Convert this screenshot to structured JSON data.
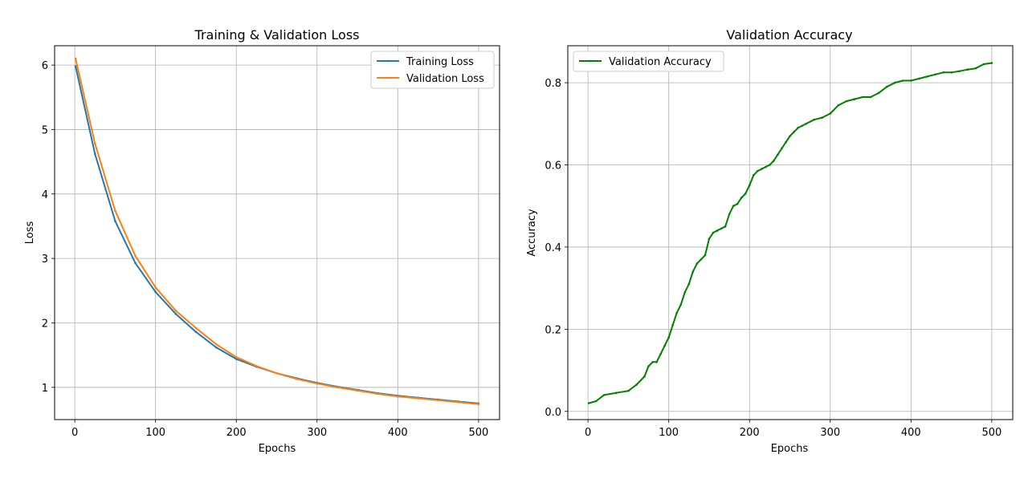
{
  "chart_data": [
    {
      "type": "line",
      "title": "Training & Validation Loss",
      "xlabel": "Epochs",
      "ylabel": "Loss",
      "xlim": [
        -25,
        526
      ],
      "ylim": [
        0.5,
        6.3
      ],
      "xticks": [
        0,
        100,
        200,
        300,
        400,
        500
      ],
      "yticks": [
        1,
        2,
        3,
        4,
        5,
        6
      ],
      "grid": true,
      "legend_position": "top-right",
      "series": [
        {
          "name": "Training Loss",
          "color": "#1f77b4",
          "x": [
            1,
            25,
            50,
            75,
            100,
            125,
            150,
            175,
            200,
            225,
            250,
            275,
            300,
            325,
            350,
            375,
            400,
            425,
            450,
            475,
            500
          ],
          "y": [
            5.98,
            4.62,
            3.58,
            2.93,
            2.48,
            2.14,
            1.86,
            1.62,
            1.44,
            1.32,
            1.22,
            1.14,
            1.07,
            1.01,
            0.96,
            0.91,
            0.87,
            0.84,
            0.81,
            0.78,
            0.75
          ]
        },
        {
          "name": "Validation Loss",
          "color": "#ff7f0e",
          "x": [
            1,
            25,
            50,
            75,
            100,
            125,
            150,
            175,
            200,
            225,
            250,
            275,
            300,
            325,
            350,
            375,
            400,
            425,
            450,
            475,
            500
          ],
          "y": [
            6.1,
            4.78,
            3.74,
            3.04,
            2.55,
            2.19,
            1.92,
            1.67,
            1.47,
            1.33,
            1.22,
            1.13,
            1.06,
            1.0,
            0.95,
            0.9,
            0.86,
            0.83,
            0.8,
            0.77,
            0.74
          ]
        }
      ]
    },
    {
      "type": "line",
      "title": "Validation Accuracy",
      "xlabel": "Epochs",
      "ylabel": "Accuracy",
      "xlim": [
        -25,
        526
      ],
      "ylim": [
        -0.02,
        0.89
      ],
      "xticks": [
        0,
        100,
        200,
        300,
        400,
        500
      ],
      "yticks": [
        0.0,
        0.2,
        0.4,
        0.6,
        0.8
      ],
      "grid": true,
      "legend_position": "top-left",
      "series": [
        {
          "name": "Validation Accuracy",
          "color": "#008000",
          "x": [
            1,
            10,
            20,
            35,
            50,
            60,
            70,
            75,
            80,
            85,
            90,
            95,
            100,
            105,
            110,
            115,
            120,
            125,
            130,
            135,
            140,
            145,
            150,
            155,
            160,
            165,
            170,
            175,
            180,
            185,
            190,
            195,
            200,
            205,
            210,
            215,
            220,
            225,
            230,
            235,
            240,
            245,
            250,
            255,
            260,
            265,
            270,
            280,
            290,
            300,
            310,
            320,
            330,
            340,
            350,
            360,
            370,
            380,
            390,
            400,
            410,
            420,
            430,
            440,
            450,
            460,
            470,
            480,
            490,
            500
          ],
          "y": [
            0.02,
            0.025,
            0.04,
            0.045,
            0.05,
            0.065,
            0.085,
            0.11,
            0.12,
            0.12,
            0.14,
            0.16,
            0.18,
            0.21,
            0.24,
            0.26,
            0.29,
            0.31,
            0.34,
            0.36,
            0.37,
            0.38,
            0.42,
            0.435,
            0.44,
            0.445,
            0.45,
            0.48,
            0.5,
            0.505,
            0.52,
            0.53,
            0.55,
            0.575,
            0.585,
            0.59,
            0.595,
            0.6,
            0.61,
            0.625,
            0.64,
            0.655,
            0.67,
            0.68,
            0.69,
            0.695,
            0.7,
            0.71,
            0.715,
            0.725,
            0.745,
            0.755,
            0.76,
            0.765,
            0.765,
            0.775,
            0.79,
            0.8,
            0.805,
            0.805,
            0.81,
            0.815,
            0.82,
            0.825,
            0.825,
            0.828,
            0.832,
            0.835,
            0.845,
            0.848
          ]
        }
      ]
    }
  ]
}
